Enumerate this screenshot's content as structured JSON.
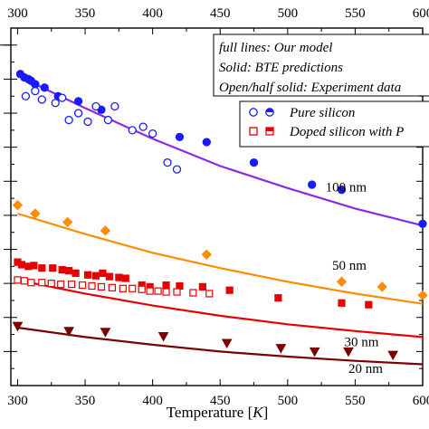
{
  "chart_data": {
    "type": "scatter",
    "xlabel_prefix": "Temperature [",
    "xlabel_unit": "K",
    "xlabel_suffix": "]",
    "xlim": [
      295,
      600
    ],
    "ylim": [
      0,
      21
    ],
    "x_ticks": [
      300,
      350,
      400,
      450,
      500,
      550,
      600
    ],
    "grid": false,
    "notes": [
      "full lines: Our model",
      "Solid: BTE predictions",
      "Open/half solid: Experiment data"
    ],
    "legend": [
      {
        "label": "Pure silicon",
        "marker": "circle",
        "color": "#1a1aff"
      },
      {
        "label": "Doped silicon with P",
        "marker": "square",
        "color": "#e60000"
      }
    ],
    "curve_labels": [
      {
        "text": "100 nm",
        "x": 528,
        "y": 11.4
      },
      {
        "text": "50 nm",
        "x": 533,
        "y": 6.8
      },
      {
        "text": "30 nm",
        "x": 542,
        "y": 2.3
      },
      {
        "text": "20 nm",
        "x": 545,
        "y": 0.75
      }
    ],
    "series": [
      {
        "kind": "line",
        "color": "#8a2be2",
        "x": [
          300,
          350,
          400,
          450,
          500,
          550,
          600
        ],
        "y": [
          18.2,
          16.3,
          14.5,
          12.9,
          11.6,
          10.4,
          9.4
        ]
      },
      {
        "kind": "line",
        "color": "#ff8c00",
        "x": [
          300,
          350,
          400,
          450,
          500,
          550,
          600
        ],
        "y": [
          10.1,
          8.9,
          7.8,
          6.9,
          6.1,
          5.4,
          4.8
        ]
      },
      {
        "kind": "line",
        "color": "#e60000",
        "x": [
          300,
          350,
          400,
          450,
          500,
          550,
          600
        ],
        "y": [
          6.2,
          5.4,
          4.7,
          4.1,
          3.6,
          3.2,
          2.85
        ]
      },
      {
        "kind": "line",
        "color": "#7a0000",
        "x": [
          300,
          350,
          400,
          450,
          500,
          550,
          600
        ],
        "y": [
          3.4,
          2.85,
          2.4,
          2.0,
          1.7,
          1.45,
          1.25
        ]
      },
      {
        "kind": "points",
        "marker": "circle",
        "fill": "solid",
        "color": "#1a1aff",
        "x": [
          302,
          305,
          308,
          310,
          313,
          320,
          330,
          345,
          362,
          420,
          440,
          475,
          518,
          540,
          600
        ],
        "y": [
          18.3,
          18.1,
          18.0,
          17.9,
          17.7,
          17.5,
          17.0,
          16.7,
          16.2,
          14.6,
          14.3,
          13.1,
          11.8,
          11.5,
          9.5
        ]
      },
      {
        "kind": "points",
        "marker": "circle",
        "fill": "open",
        "color": "#1a1aff",
        "x": [
          306,
          313,
          318,
          328,
          333,
          338,
          345,
          352,
          358,
          367,
          372,
          385,
          393,
          400,
          411,
          418
        ],
        "y": [
          17.0,
          17.3,
          16.8,
          16.6,
          16.9,
          15.6,
          16.0,
          15.5,
          16.4,
          15.6,
          16.4,
          15.0,
          15.2,
          14.8,
          13.1,
          12.7
        ]
      },
      {
        "kind": "points",
        "marker": "diamond",
        "fill": "solid",
        "color": "#ff8c00",
        "x": [
          300,
          313,
          337,
          365,
          440,
          540,
          570,
          600
        ],
        "y": [
          10.6,
          10.1,
          9.6,
          9.1,
          7.7,
          6.1,
          5.8,
          5.3
        ]
      },
      {
        "kind": "points",
        "marker": "square",
        "fill": "solid",
        "color": "#e60000",
        "x": [
          300,
          303,
          308,
          312,
          318,
          326,
          333,
          338,
          343,
          352,
          358,
          363,
          368,
          375,
          380,
          392,
          398,
          410,
          420,
          437,
          457,
          493,
          540,
          560
        ],
        "y": [
          7.25,
          7.1,
          7.0,
          7.05,
          6.9,
          6.9,
          6.8,
          6.75,
          6.6,
          6.5,
          6.45,
          6.6,
          6.4,
          6.35,
          6.3,
          5.9,
          5.8,
          5.9,
          5.85,
          5.8,
          5.6,
          5.15,
          4.85,
          4.75
        ]
      },
      {
        "kind": "points",
        "marker": "square",
        "fill": "open",
        "color": "#e60000",
        "x": [
          300,
          305,
          310,
          318,
          325,
          332,
          340,
          348,
          355,
          362,
          370,
          378,
          385,
          392,
          398,
          404,
          410,
          418,
          430,
          442
        ],
        "y": [
          6.2,
          6.15,
          6.05,
          6.05,
          6.0,
          5.95,
          5.95,
          5.9,
          5.85,
          5.8,
          5.75,
          5.7,
          5.7,
          5.65,
          5.55,
          5.55,
          5.5,
          5.5,
          5.45,
          5.4
        ]
      },
      {
        "kind": "points",
        "marker": "triangle-down",
        "fill": "solid",
        "color": "#7a0000",
        "x": [
          300,
          338,
          365,
          408,
          455,
          495,
          520,
          545,
          578
        ],
        "y": [
          3.5,
          3.2,
          3.15,
          2.9,
          2.5,
          2.2,
          2.0,
          2.0,
          1.8
        ]
      }
    ]
  }
}
